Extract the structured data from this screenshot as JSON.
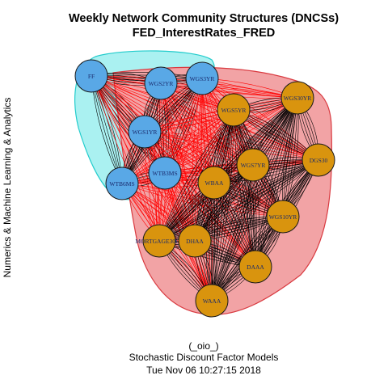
{
  "title_line1": "Weekly Network Community Structures (DNCSs)",
  "title_line2": "FED_InterestRates_FRED",
  "ylabel": "Numerics & Machine Learning & Analytics",
  "caption": [
    "(_oio_)",
    "Stochastic Discount Factor Models",
    "Tue Nov 06 10:27:15 2018"
  ],
  "colors": {
    "community_blue_fill": "#aaf1f1",
    "community_blue_stroke": "#22cccc",
    "community_red_fill": "#f2a3a5",
    "community_red_stroke": "#d93a40",
    "node_blue": "#59a8e6",
    "node_gold": "#d9940e",
    "edge_within": "#000000",
    "edge_between": "#ff0000"
  },
  "nodes": [
    {
      "id": "FF",
      "label": "FF",
      "group": "blue"
    },
    {
      "id": "WGS2YR",
      "label": "WGS2YR",
      "group": "blue"
    },
    {
      "id": "WGS3YR",
      "label": "WGS3YR",
      "group": "blue"
    },
    {
      "id": "WGS1YR",
      "label": "WGS1YR",
      "group": "blue"
    },
    {
      "id": "WTB6MS",
      "label": "WTB6MS",
      "group": "blue"
    },
    {
      "id": "WTB3MS",
      "label": "WTB3MS",
      "group": "blue"
    },
    {
      "id": "WGS30YR",
      "label": "WGS30YR",
      "group": "gold"
    },
    {
      "id": "WGS5YR",
      "label": "WGS5YR",
      "group": "gold"
    },
    {
      "id": "DGS30",
      "label": "DGS30",
      "group": "gold"
    },
    {
      "id": "WGS7YR",
      "label": "WGS7YR",
      "group": "gold"
    },
    {
      "id": "WBAA",
      "label": "WBAA",
      "group": "gold"
    },
    {
      "id": "WGS10YR",
      "label": "WGS10YR",
      "group": "gold"
    },
    {
      "id": "MORTGAGE30US",
      "label": "MORTGAGE30US",
      "group": "gold"
    },
    {
      "id": "DHAA",
      "label": "DHAA",
      "group": "gold"
    },
    {
      "id": "DAAA",
      "label": "DAAA",
      "group": "gold"
    },
    {
      "id": "WAAA",
      "label": "WAAA",
      "group": "gold"
    }
  ]
}
